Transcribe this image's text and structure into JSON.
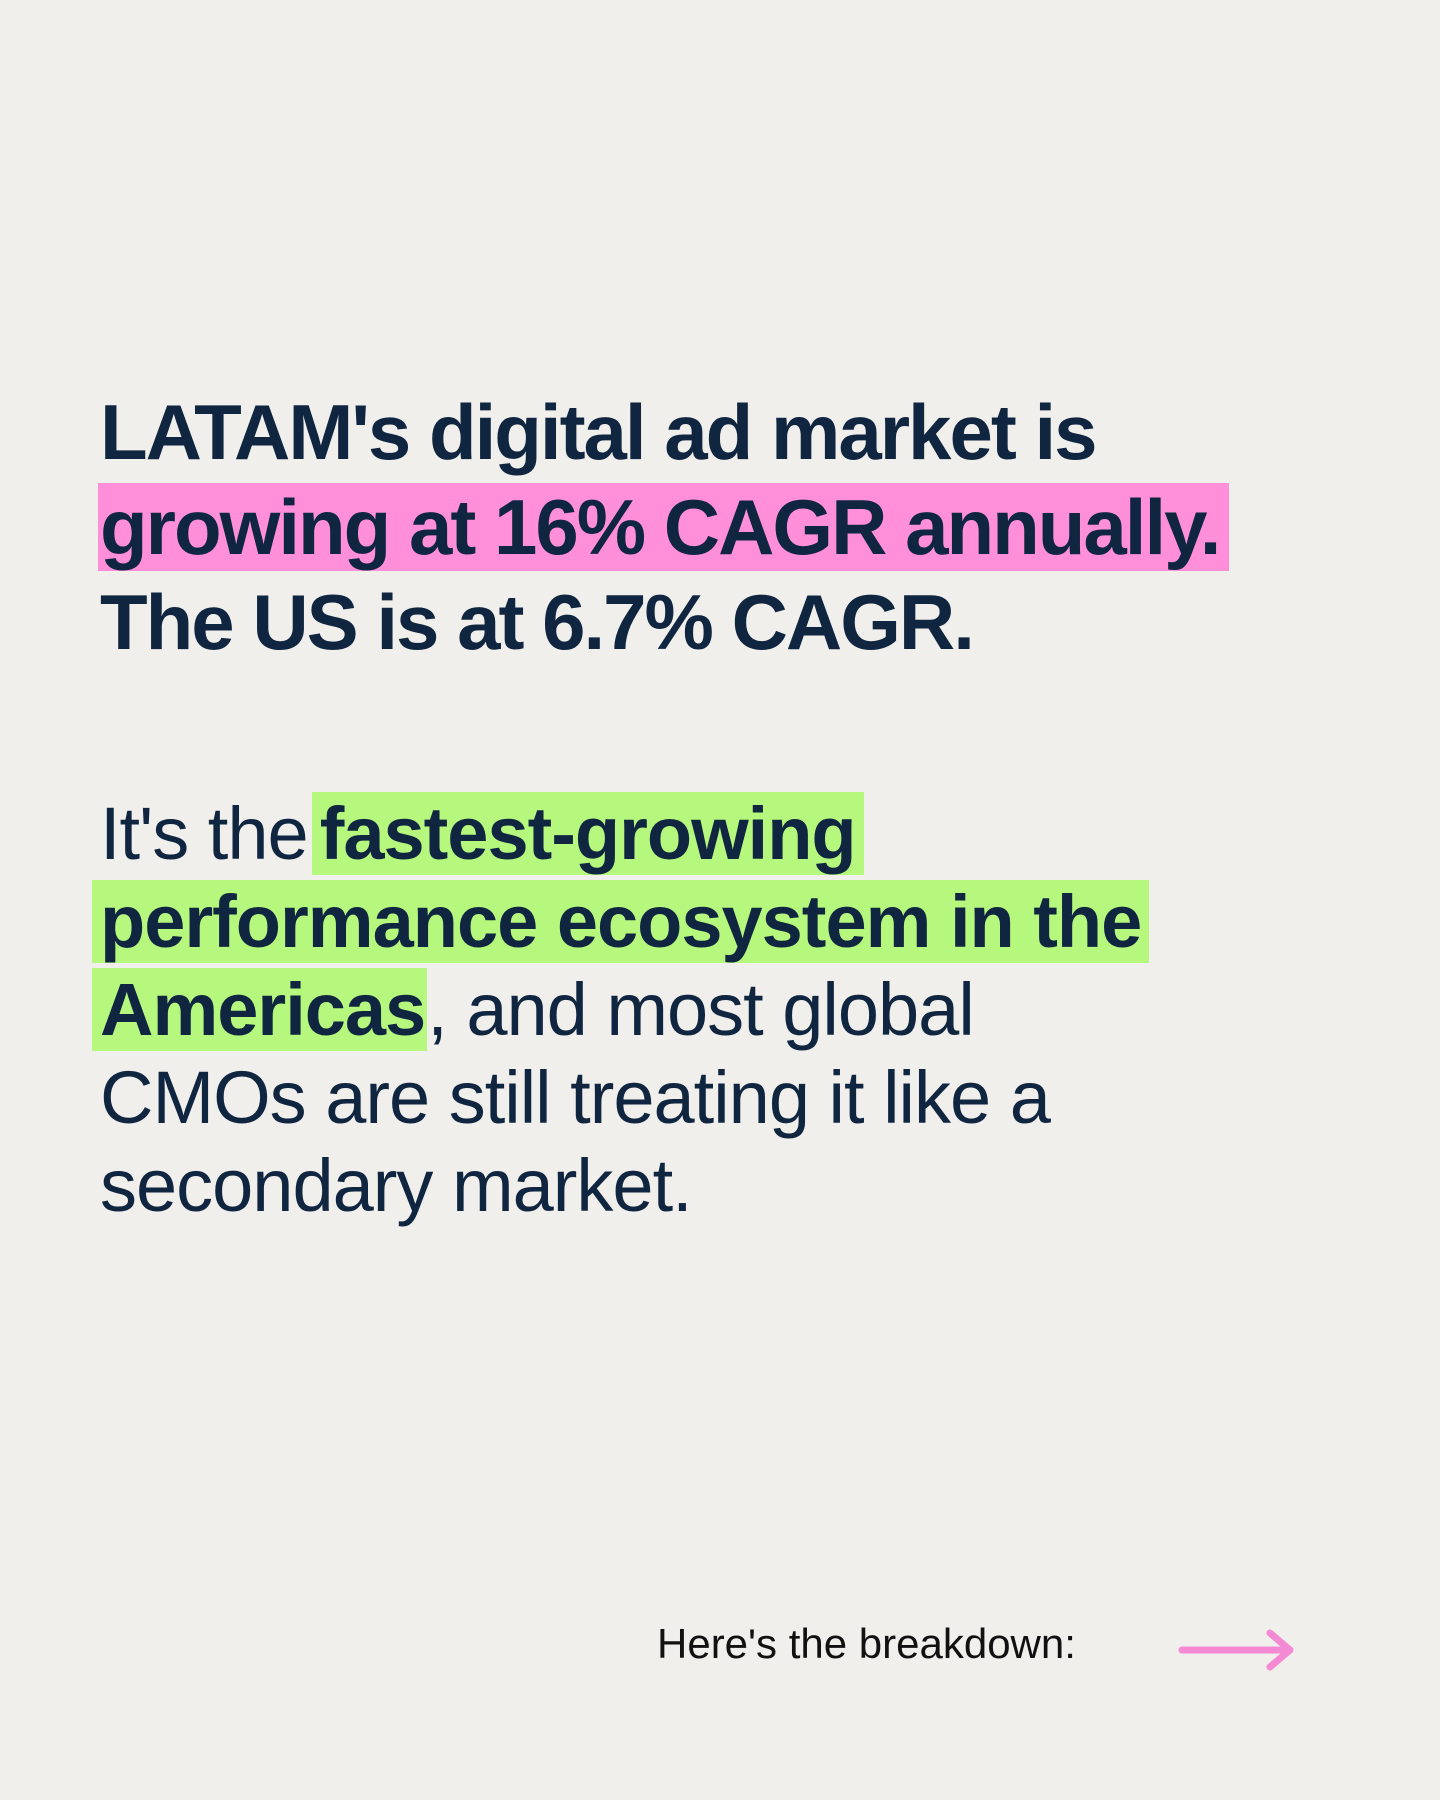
{
  "headline": {
    "line1": "LATAM's digital ad market is",
    "highlight": "growing at 16% CAGR annually.",
    "line3": "The US is at 6.7% CAGR."
  },
  "body": {
    "lead": "It's the",
    "highlight": [
      "fastest-growing",
      "performance ecosystem in the",
      "Americas"
    ],
    "rest": [
      ", and most global",
      "CMOs are still treating it like a",
      "secondary market."
    ]
  },
  "footer": {
    "cta": "Here's the breakdown:"
  }
}
